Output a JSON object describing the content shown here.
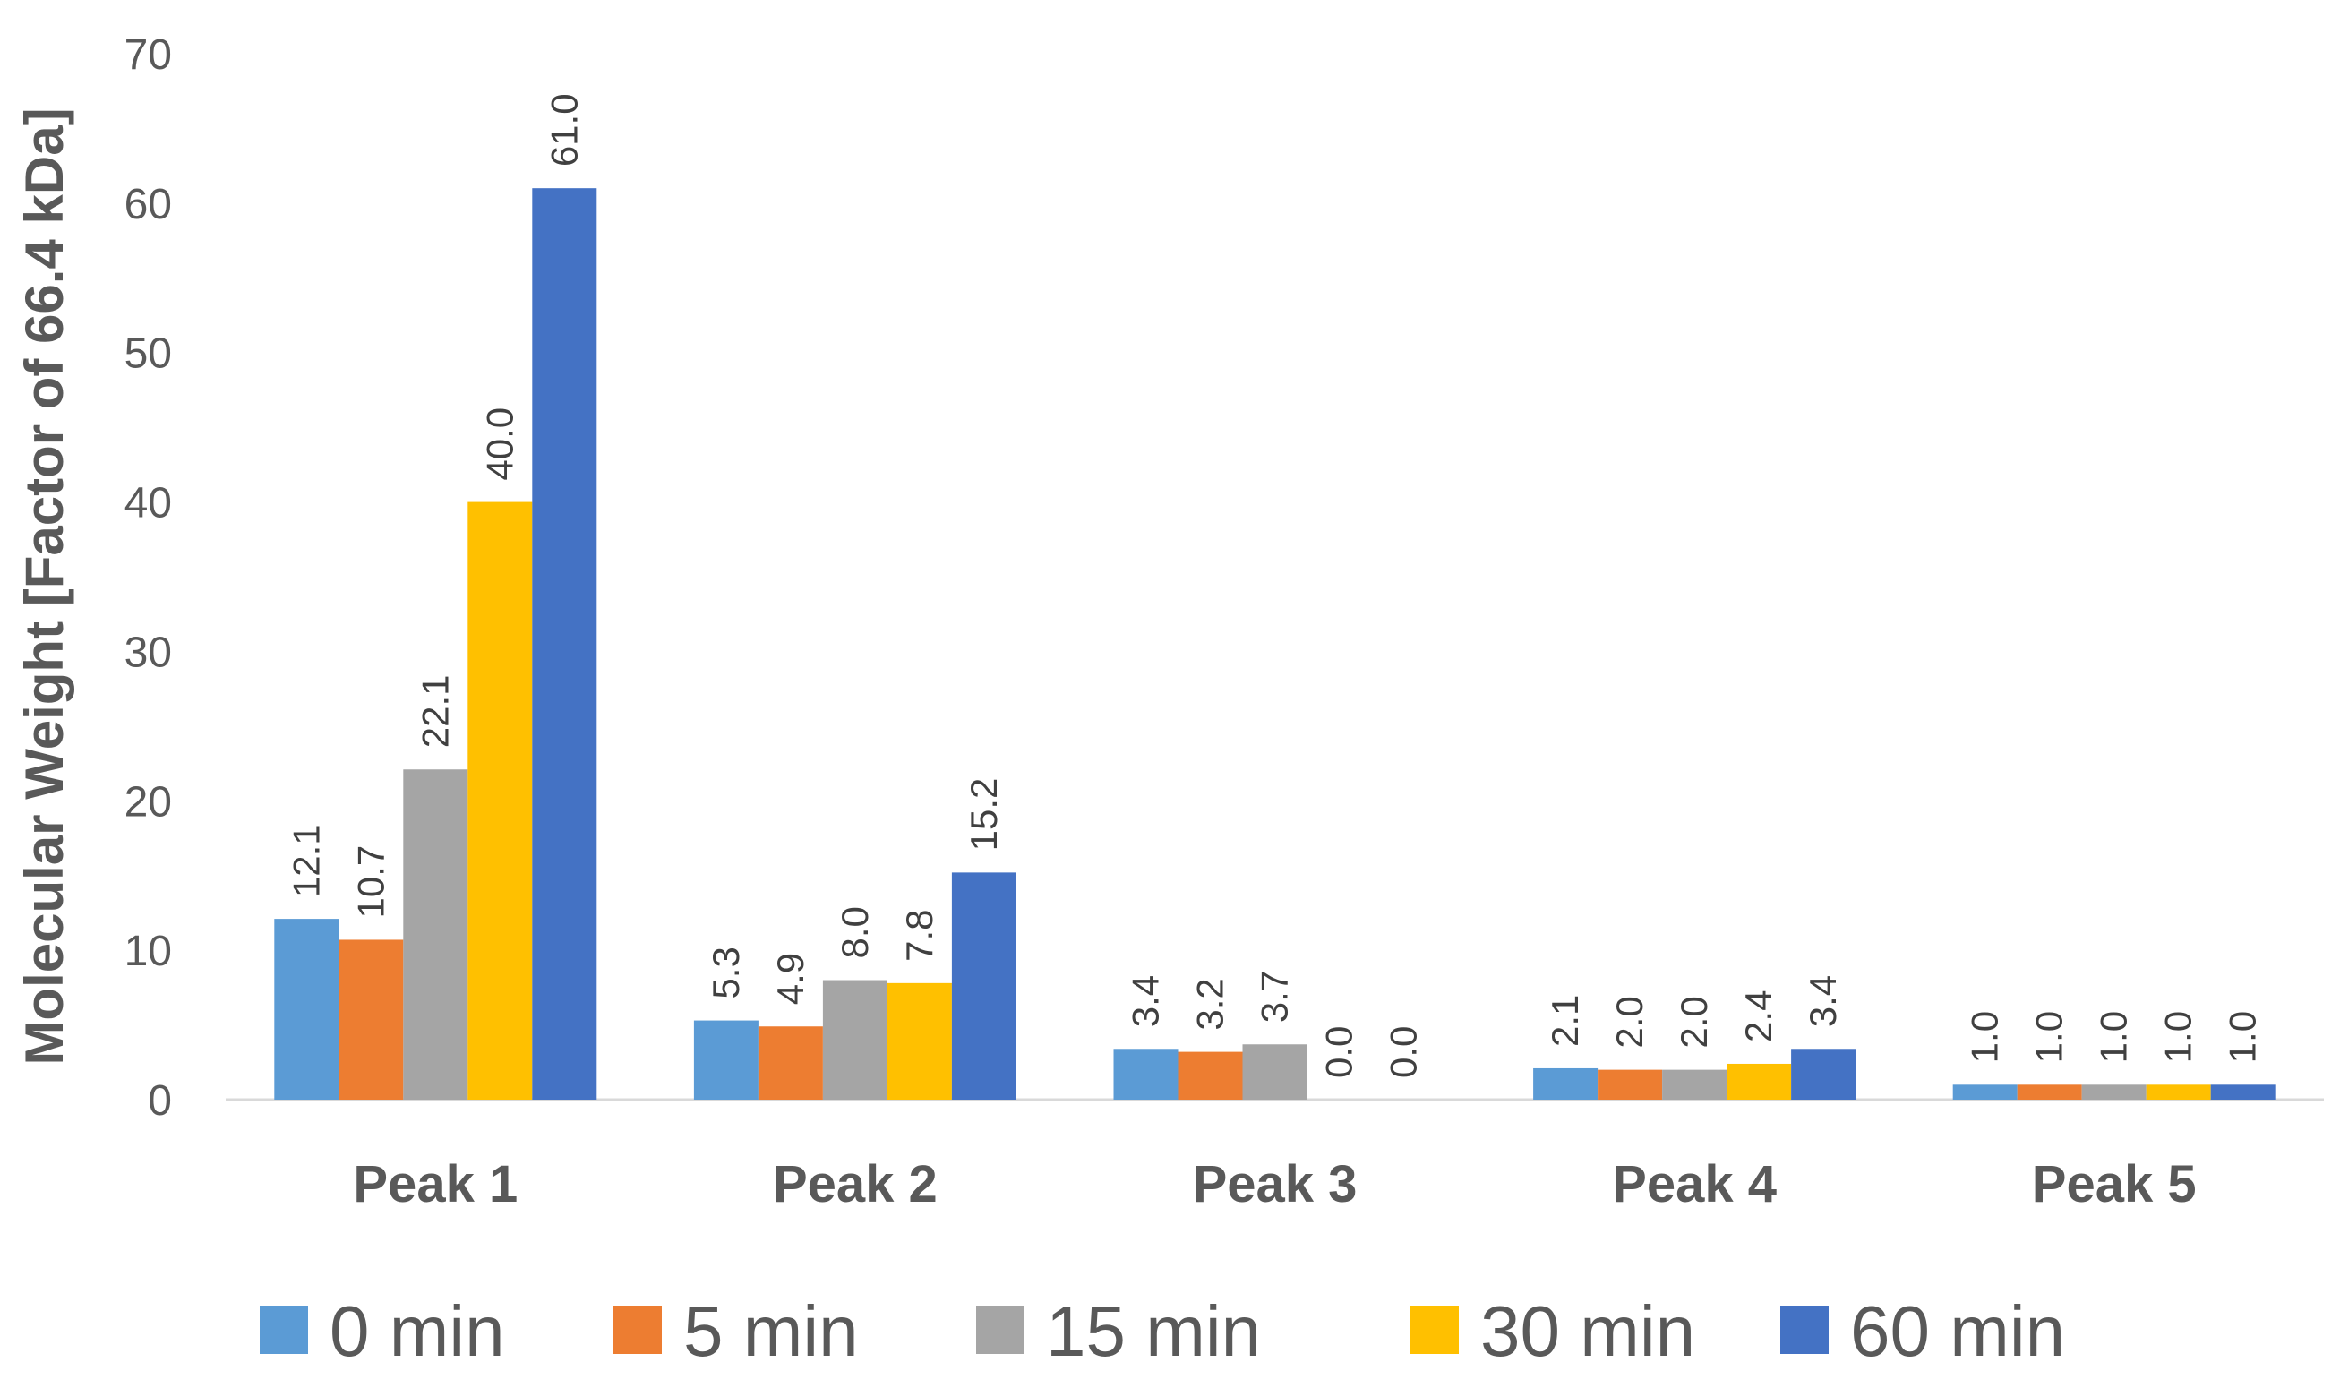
{
  "chart_data": {
    "type": "bar",
    "title": "",
    "xlabel": "",
    "ylabel": "Molecular Weight [Factor of 66.4 kDa]",
    "ylim": [
      0,
      70
    ],
    "yticks": [
      0,
      10,
      20,
      30,
      40,
      50,
      60,
      70
    ],
    "grid": false,
    "legend_position": "bottom",
    "categories": [
      "Peak 1",
      "Peak 2",
      "Peak 3",
      "Peak 4",
      "Peak 5"
    ],
    "series": [
      {
        "name": "0 min",
        "color": "#5b9bd5",
        "values": [
          12.1,
          5.3,
          3.4,
          2.1,
          1.0
        ],
        "labels": [
          "12.1",
          "5.3",
          "3.4",
          "2.1",
          "1.0"
        ]
      },
      {
        "name": "5 min",
        "color": "#ed7d31",
        "values": [
          10.7,
          4.9,
          3.2,
          2.0,
          1.0
        ],
        "labels": [
          "10.7",
          "4.9",
          "3.2",
          "2.0",
          "1.0"
        ]
      },
      {
        "name": "15 min",
        "color": "#a5a5a5",
        "values": [
          22.1,
          8.0,
          3.7,
          2.0,
          1.0
        ],
        "labels": [
          "22.1",
          "8.0",
          "3.7",
          "2.0",
          "1.0"
        ]
      },
      {
        "name": "30 min",
        "color": "#ffc000",
        "values": [
          40.0,
          7.8,
          0.0,
          2.4,
          1.0
        ],
        "labels": [
          "40.0",
          "7.8",
          "0.0",
          "2.4",
          "1.0"
        ]
      },
      {
        "name": "60 min",
        "color": "#4472c4",
        "values": [
          61.0,
          15.2,
          0.0,
          3.4,
          1.0
        ],
        "labels": [
          "61.0",
          "15.2",
          "0.0",
          "3.4",
          "1.0"
        ]
      }
    ]
  }
}
